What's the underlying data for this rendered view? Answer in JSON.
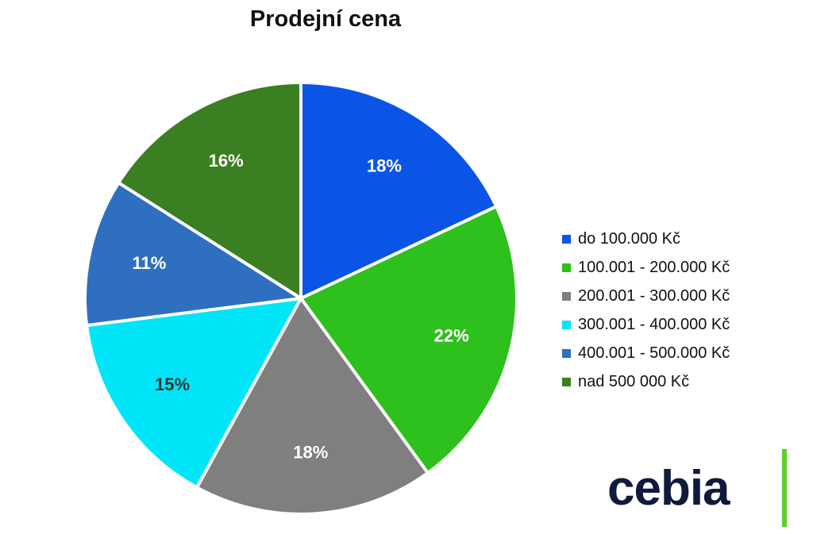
{
  "chart_data": {
    "type": "pie",
    "title": "Prodejní cena",
    "categories": [
      "do 100.000 Kč",
      "100.001 - 200.000 Kč",
      "200.001 - 300.000 Kč",
      "300.001 - 400.000 Kč",
      "400.001 - 500.000 Kč",
      "nad 500 000 Kč"
    ],
    "values": [
      18,
      22,
      18,
      15,
      11,
      16
    ],
    "labels": [
      "18%",
      "22%",
      "18%",
      "15%",
      "11%",
      "16%"
    ],
    "colors": [
      "#0a55e6",
      "#2ec01c",
      "#7f7f7f",
      "#00e5f8",
      "#2e6fbf",
      "#3a7f22"
    ],
    "label_colors": [
      "#ffffff",
      "#ffffff",
      "#ffffff",
      "#333333",
      "#ffffff",
      "#ffffff"
    ],
    "legend_position": "right"
  },
  "brand": {
    "logo_text": "cebia",
    "accent_color": "#5fcf2a"
  }
}
